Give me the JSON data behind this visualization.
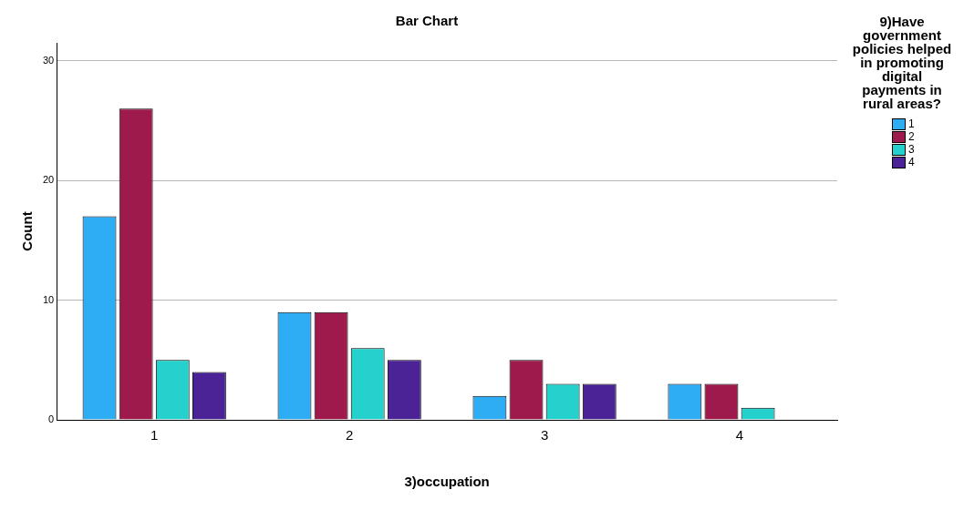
{
  "chart_data": {
    "type": "bar",
    "title": "Bar Chart",
    "xlabel": "3)occupation",
    "ylabel": "Count",
    "legend_title": "9)Have government policies helped in promoting digital payments in rural areas?",
    "categories": [
      "1",
      "2",
      "3",
      "4"
    ],
    "series": [
      {
        "name": "1",
        "color": "#2eadf5",
        "values": [
          17,
          9,
          2,
          3
        ]
      },
      {
        "name": "2",
        "color": "#9e1a4c",
        "values": [
          26,
          9,
          5,
          3
        ]
      },
      {
        "name": "3",
        "color": "#24d1cc",
        "values": [
          5,
          6,
          3,
          1
        ]
      },
      {
        "name": "4",
        "color": "#4c2396",
        "values": [
          4,
          5,
          3,
          0
        ]
      }
    ],
    "ylim": [
      0,
      31.5
    ],
    "yticks": [
      0,
      10,
      20,
      30
    ],
    "grid": "y",
    "legend": "right"
  }
}
